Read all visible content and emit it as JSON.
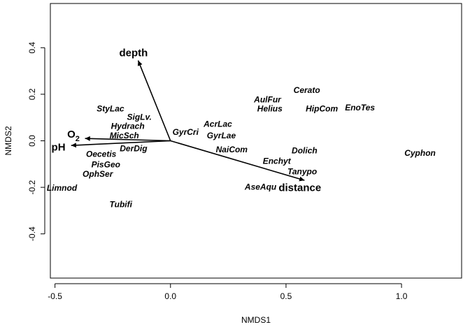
{
  "chart_data": {
    "type": "scatter",
    "xlabel": "NMDS1",
    "ylabel": "NMDS2",
    "xlim": [
      -0.52,
      1.26
    ],
    "ylim": [
      -0.59,
      0.59
    ],
    "xticks": [
      -0.5,
      0.0,
      0.5,
      1.0
    ],
    "xtick_labels": [
      "-0.5",
      "0.0",
      "0.5",
      "1.0"
    ],
    "yticks": [
      -0.4,
      -0.2,
      0.0,
      0.2,
      0.4
    ],
    "ytick_labels": [
      "-0.4",
      "-0.2",
      "0.0",
      "0.2",
      "0.4"
    ],
    "grid": false,
    "species": [
      {
        "label": "StyLac",
        "x": -0.26,
        "y": 0.135
      },
      {
        "label": "SigLv.",
        "x": -0.135,
        "y": 0.1
      },
      {
        "label": "Hydrach",
        "x": -0.185,
        "y": 0.06
      },
      {
        "label": "MicSch",
        "x": -0.2,
        "y": 0.02
      },
      {
        "label": "GyrCri",
        "x": 0.065,
        "y": 0.035
      },
      {
        "label": "AcrLac",
        "x": 0.205,
        "y": 0.07
      },
      {
        "label": "GyrLae",
        "x": 0.22,
        "y": 0.02
      },
      {
        "label": "NaiCom",
        "x": 0.265,
        "y": -0.04
      },
      {
        "label": "DerDig",
        "x": -0.16,
        "y": -0.035
      },
      {
        "label": "Oecetis",
        "x": -0.3,
        "y": -0.06
      },
      {
        "label": "PisGeo",
        "x": -0.28,
        "y": -0.105
      },
      {
        "label": "OphSer",
        "x": -0.315,
        "y": -0.145
      },
      {
        "label": "Limnod",
        "x": -0.47,
        "y": -0.205
      },
      {
        "label": "Tubifi",
        "x": -0.215,
        "y": -0.275
      },
      {
        "label": "AulFur",
        "x": 0.42,
        "y": 0.175
      },
      {
        "label": "Helius",
        "x": 0.43,
        "y": 0.135
      },
      {
        "label": "Cerato",
        "x": 0.59,
        "y": 0.215
      },
      {
        "label": "HipCom",
        "x": 0.655,
        "y": 0.135
      },
      {
        "label": "EnoTes",
        "x": 0.82,
        "y": 0.14
      },
      {
        "label": "Dolich",
        "x": 0.58,
        "y": -0.045
      },
      {
        "label": "Enchyt",
        "x": 0.46,
        "y": -0.09
      },
      {
        "label": "Tanypo",
        "x": 0.57,
        "y": -0.135
      },
      {
        "label": "AseAqu",
        "x": 0.39,
        "y": -0.2
      },
      {
        "label": "Cyphon",
        "x": 1.08,
        "y": -0.055
      }
    ],
    "vectors": [
      {
        "label": "depth",
        "x": -0.14,
        "y": 0.345,
        "label_x": -0.16,
        "label_y": 0.375,
        "subscript": ""
      },
      {
        "label": "O",
        "subscript": "2",
        "x": -0.37,
        "y": 0.01,
        "label_x": -0.42,
        "label_y": 0.025
      },
      {
        "label": "pH",
        "x": -0.43,
        "y": -0.02,
        "label_x": -0.485,
        "label_y": -0.03,
        "subscript": ""
      },
      {
        "label": "distance",
        "x": 0.58,
        "y": -0.17,
        "label_x": 0.56,
        "label_y": -0.205,
        "subscript": ""
      }
    ]
  }
}
